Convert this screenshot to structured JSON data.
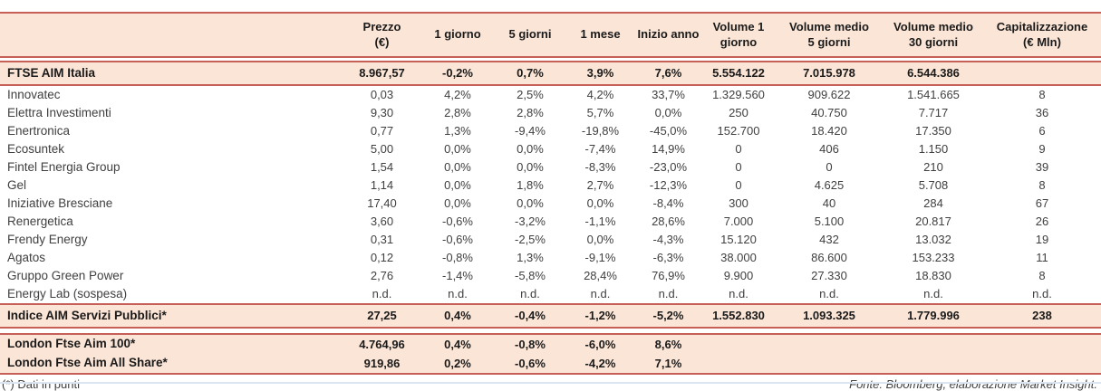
{
  "colors": {
    "band_bg": "#fbe5d6",
    "rule": "#c65f57",
    "text": "#404040",
    "bold_text": "#1a1a1a"
  },
  "table": {
    "header_rows": [
      [
        "",
        "Prezzo\n(€)",
        "1 giorno",
        "5 giorni",
        "1 mese",
        "Inizio anno",
        "Volume 1\ngiorno",
        "Volume medio\n5 giorni",
        "Volume medio\n30 giorni",
        "Capitalizzazione\n(€ Mln)"
      ]
    ],
    "ftse_rows": [
      [
        "FTSE AIM Italia",
        "8.967,57",
        "-0,2%",
        "0,7%",
        "3,9%",
        "7,6%",
        "5.554.122",
        "7.015.978",
        "6.544.386",
        ""
      ]
    ],
    "stock_rows": [
      [
        "Innovatec",
        "0,03",
        "4,2%",
        "2,5%",
        "4,2%",
        "33,7%",
        "1.329.560",
        "909.622",
        "1.541.665",
        "8"
      ],
      [
        "Elettra Investimenti",
        "9,30",
        "2,8%",
        "2,8%",
        "5,7%",
        "0,0%",
        "250",
        "40.750",
        "7.717",
        "36"
      ],
      [
        "Enertronica",
        "0,77",
        "1,3%",
        "-9,4%",
        "-19,8%",
        "-45,0%",
        "152.700",
        "18.420",
        "17.350",
        "6"
      ],
      [
        "Ecosuntek",
        "5,00",
        "0,0%",
        "0,0%",
        "-7,4%",
        "14,9%",
        "0",
        "406",
        "1.150",
        "9"
      ],
      [
        "Fintel Energia Group",
        "1,54",
        "0,0%",
        "0,0%",
        "-8,3%",
        "-23,0%",
        "0",
        "0",
        "210",
        "39"
      ],
      [
        "Gel",
        "1,14",
        "0,0%",
        "1,8%",
        "2,7%",
        "-12,3%",
        "0",
        "4.625",
        "5.708",
        "8"
      ],
      [
        "Iniziative Bresciane",
        "17,40",
        "0,0%",
        "0,0%",
        "0,0%",
        "-8,4%",
        "300",
        "40",
        "284",
        "67"
      ],
      [
        "Renergetica",
        "3,60",
        "-0,6%",
        "-3,2%",
        "-1,1%",
        "28,6%",
        "7.000",
        "5.100",
        "20.817",
        "26"
      ],
      [
        "Frendy Energy",
        "0,31",
        "-0,6%",
        "-2,5%",
        "0,0%",
        "-4,3%",
        "15.120",
        "432",
        "13.032",
        "19"
      ],
      [
        "Agatos",
        "0,12",
        "-0,8%",
        "1,3%",
        "-9,1%",
        "-6,3%",
        "38.000",
        "86.600",
        "153.233",
        "11"
      ],
      [
        "Gruppo Green Power",
        "2,76",
        "-1,4%",
        "-5,8%",
        "28,4%",
        "76,9%",
        "9.900",
        "27.330",
        "18.830",
        "8"
      ],
      [
        "Energy Lab (sospesa)",
        "n.d.",
        "n.d.",
        "n.d.",
        "n.d.",
        "n.d.",
        "n.d.",
        "n.d.",
        "n.d.",
        "n.d."
      ]
    ],
    "index_rows": [
      [
        "Indice AIM Servizi Pubblici*",
        "27,25",
        "0,4%",
        "-0,4%",
        "-1,2%",
        "-5,2%",
        "1.552.830",
        "1.093.325",
        "1.779.996",
        "238"
      ]
    ],
    "london_rows": [
      [
        "London Ftse Aim 100*",
        "4.764,96",
        "0,4%",
        "-0,8%",
        "-6,0%",
        "8,6%",
        "",
        "",
        "",
        ""
      ],
      [
        "London Ftse Aim All Share*",
        "919,86",
        "0,2%",
        "-0,6%",
        "-4,2%",
        "7,1%",
        "",
        "",
        "",
        ""
      ]
    ]
  },
  "footer": {
    "note": "(*) Dati in punti",
    "source": "Fonte: Bloomberg, elaborazione Market Insight."
  }
}
